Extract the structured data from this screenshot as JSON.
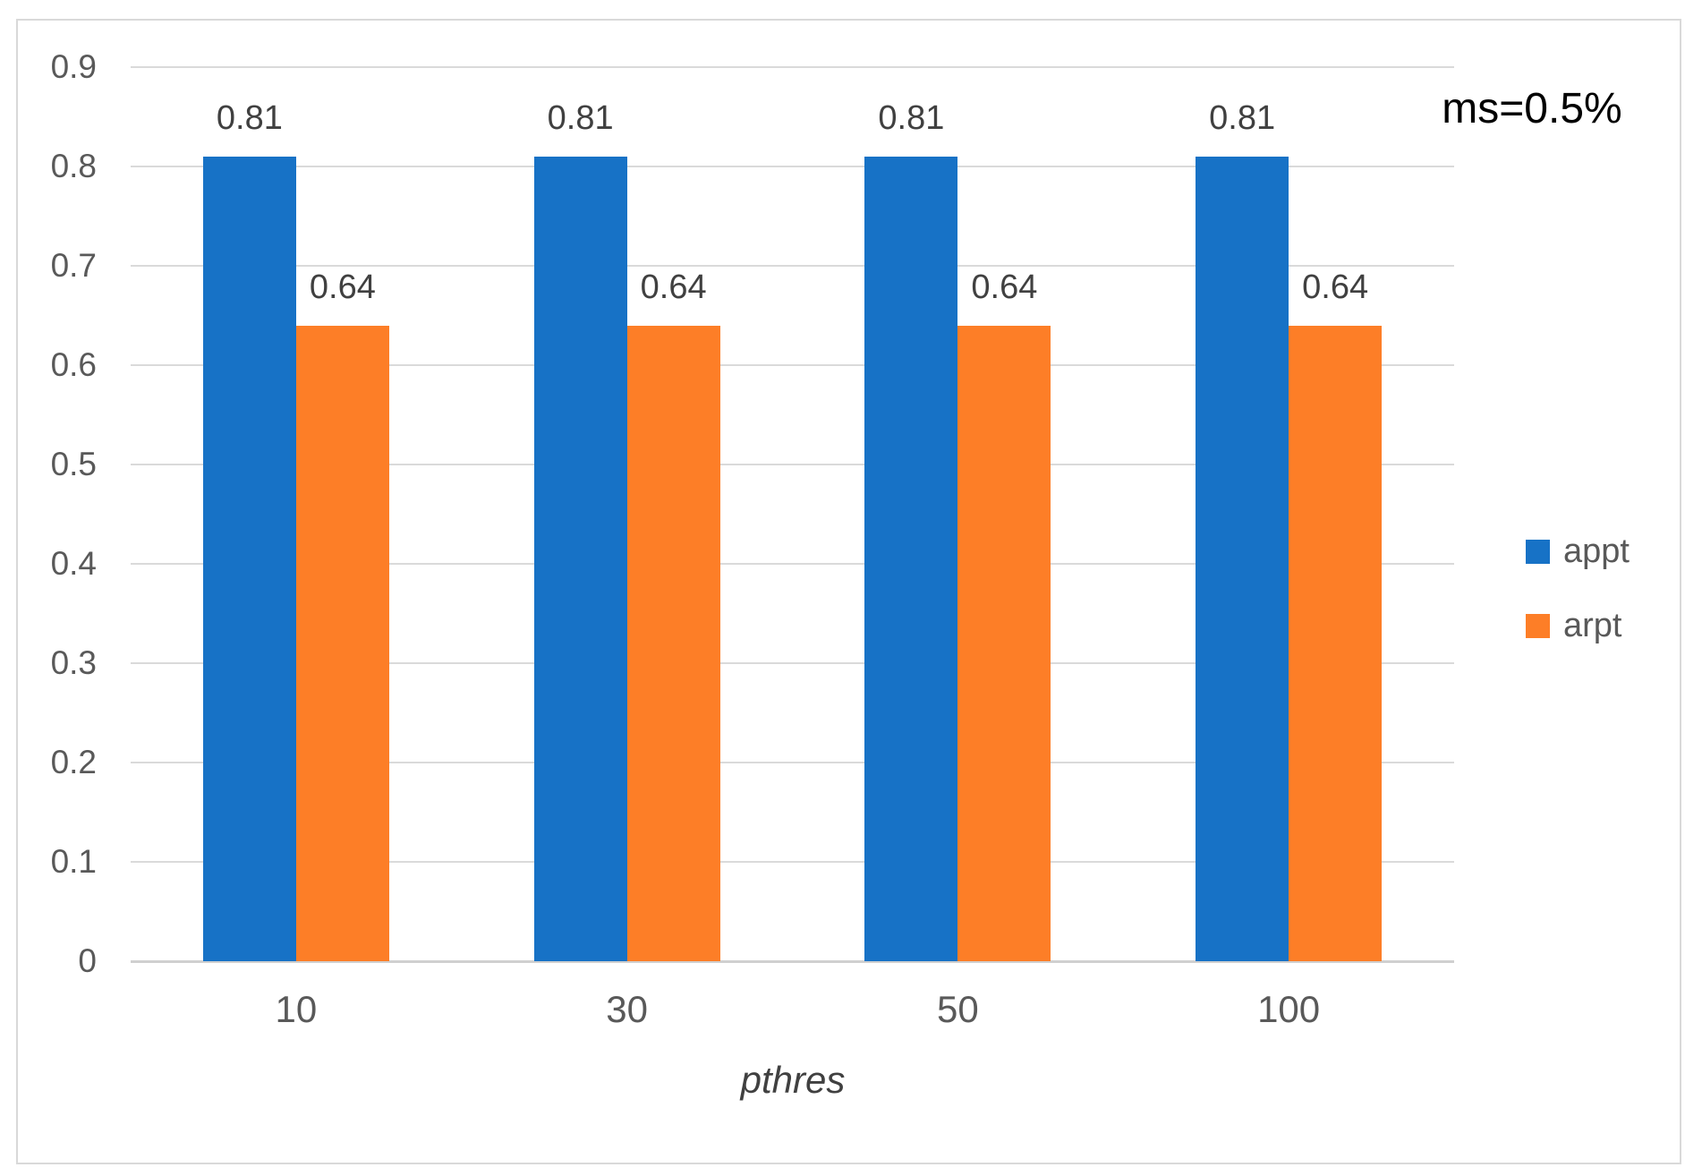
{
  "figure": {
    "background": "#ffffff",
    "border_color": "#d9d9d9"
  },
  "chart_data": {
    "type": "bar",
    "title": "",
    "xlabel": "pthres",
    "ylabel": "",
    "categories": [
      "10",
      "30",
      "50",
      "100"
    ],
    "series": [
      {
        "name": "appt",
        "color": "#1772c6",
        "values": [
          0.81,
          0.81,
          0.81,
          0.81
        ],
        "labels": [
          "0.81",
          "0.81",
          "0.81",
          "0.81"
        ]
      },
      {
        "name": "arpt",
        "color": "#fd7e27",
        "values": [
          0.64,
          0.64,
          0.64,
          0.64
        ],
        "labels": [
          "0.64",
          "0.64",
          "0.64",
          "0.64"
        ]
      }
    ],
    "ylim": [
      0,
      0.9
    ],
    "yticks": [
      0,
      0.1,
      0.2,
      0.3,
      0.4,
      0.5,
      0.6,
      0.7,
      0.8,
      0.9
    ],
    "ytick_labels": [
      "0",
      "0.1",
      "0.2",
      "0.3",
      "0.4",
      "0.5",
      "0.6",
      "0.7",
      "0.8",
      "0.9"
    ],
    "grid": true,
    "data_labels": true,
    "legend_position": "right",
    "annotation": "ms=0.5%",
    "grid_color": "#dadada",
    "axis_text_color": "#595959",
    "label_text_color": "#404040",
    "annotation_color": "#000000"
  }
}
